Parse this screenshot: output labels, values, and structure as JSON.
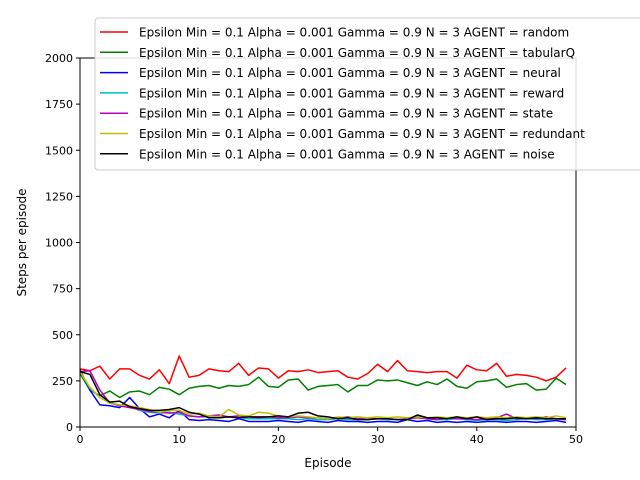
{
  "chart_data": {
    "type": "line",
    "xlabel": "Episode",
    "ylabel": "Steps per episode",
    "xlim": [
      0,
      50
    ],
    "ylim": [
      0,
      2000
    ],
    "xticks": [
      "0",
      "10",
      "20",
      "30",
      "40",
      "50"
    ],
    "yticks": [
      "0",
      "250",
      "500",
      "750",
      "1000",
      "1250",
      "1500",
      "1750",
      "2000"
    ],
    "grid": false,
    "legend_position": "top-right",
    "series": [
      {
        "name": "Epsilon Min = 0.1 Alpha = 0.001 Gamma = 0.9 N = 3 AGENT = random",
        "color": "#ff0000",
        "values": [
          315,
          305,
          330,
          260,
          315,
          315,
          280,
          260,
          310,
          235,
          385,
          270,
          280,
          315,
          305,
          300,
          345,
          280,
          320,
          315,
          265,
          305,
          300,
          310,
          295,
          300,
          305,
          270,
          260,
          290,
          340,
          300,
          360,
          305,
          300,
          295,
          300,
          300,
          265,
          335,
          310,
          305,
          345,
          275,
          285,
          280,
          270,
          250,
          270,
          320
        ]
      },
      {
        "name": "Epsilon Min = 0.1 Alpha = 0.001 Gamma = 0.9 N = 3 AGENT = tabularQ",
        "color": "#008000",
        "values": [
          290,
          200,
          170,
          195,
          160,
          190,
          195,
          175,
          215,
          205,
          175,
          210,
          220,
          225,
          210,
          225,
          220,
          230,
          270,
          220,
          215,
          255,
          260,
          200,
          220,
          225,
          230,
          190,
          225,
          225,
          255,
          250,
          255,
          240,
          225,
          245,
          230,
          260,
          220,
          210,
          245,
          250,
          260,
          215,
          230,
          235,
          200,
          205,
          265,
          230
        ]
      },
      {
        "name": "Epsilon Min = 0.1 Alpha = 0.001 Gamma = 0.9 N = 3 AGENT = neural",
        "color": "#0000ff",
        "values": [
          310,
          200,
          120,
          115,
          105,
          160,
          100,
          55,
          70,
          50,
          90,
          40,
          35,
          40,
          35,
          30,
          45,
          30,
          30,
          30,
          35,
          30,
          25,
          35,
          30,
          25,
          35,
          30,
          30,
          25,
          30,
          30,
          25,
          40,
          30,
          35,
          25,
          30,
          25,
          30,
          25,
          30,
          30,
          25,
          30,
          30,
          25,
          30,
          35,
          25
        ]
      },
      {
        "name": "Epsilon Min = 0.1 Alpha = 0.001 Gamma = 0.9 N = 3 AGENT = reward",
        "color": "#00bfbf",
        "values": [
          300,
          210,
          160,
          130,
          120,
          110,
          90,
          80,
          75,
          80,
          70,
          60,
          55,
          55,
          50,
          55,
          50,
          45,
          45,
          45,
          45,
          45,
          40,
          45,
          40,
          40,
          45,
          40,
          40,
          40,
          45,
          40,
          40,
          40,
          60,
          45,
          40,
          40,
          45,
          40,
          35,
          40,
          40,
          35,
          40,
          45,
          40,
          40,
          45,
          40
        ]
      },
      {
        "name": "Epsilon Min = 0.1 Alpha = 0.001 Gamma = 0.9 N = 3 AGENT = state",
        "color": "#bf00bf",
        "values": [
          300,
          305,
          200,
          130,
          115,
          105,
          95,
          85,
          80,
          75,
          80,
          60,
          55,
          60,
          65,
          55,
          60,
          55,
          50,
          55,
          50,
          50,
          55,
          50,
          50,
          45,
          50,
          55,
          45,
          50,
          45,
          45,
          40,
          45,
          50,
          45,
          40,
          50,
          45,
          45,
          40,
          45,
          50,
          70,
          45,
          50,
          45,
          55,
          45,
          40
        ]
      },
      {
        "name": "Epsilon Min = 0.1 Alpha = 0.001 Gamma = 0.9 N = 3 AGENT = redundant",
        "color": "#bfbf00",
        "values": [
          300,
          215,
          160,
          130,
          120,
          115,
          105,
          95,
          80,
          90,
          90,
          70,
          75,
          60,
          55,
          95,
          65,
          60,
          80,
          75,
          60,
          55,
          60,
          55,
          50,
          45,
          55,
          50,
          55,
          50,
          55,
          50,
          55,
          50,
          55,
          50,
          55,
          50,
          55,
          50,
          55,
          50,
          55,
          50,
          55,
          50,
          55,
          50,
          60,
          50
        ]
      },
      {
        "name": "Epsilon Min = 0.1 Alpha = 0.001 Gamma = 0.9 N = 3 AGENT = noise",
        "color": "#000000",
        "values": [
          300,
          285,
          175,
          135,
          140,
          110,
          100,
          90,
          90,
          95,
          105,
          80,
          70,
          50,
          50,
          55,
          50,
          55,
          55,
          55,
          60,
          55,
          75,
          80,
          60,
          55,
          45,
          50,
          40,
          40,
          45,
          45,
          40,
          40,
          65,
          50,
          50,
          45,
          55,
          45,
          55,
          40,
          45,
          45,
          50,
          45,
          50,
          45,
          45,
          45
        ]
      }
    ]
  }
}
